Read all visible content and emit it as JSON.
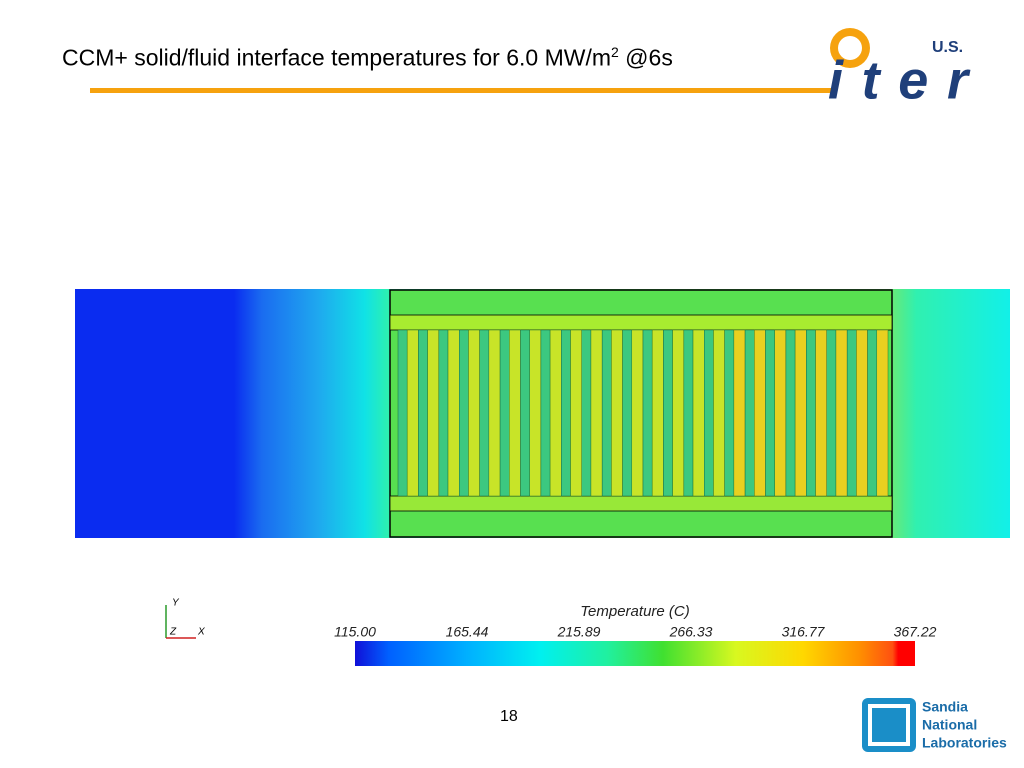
{
  "header": {
    "title": "CCM+ solid/fluid interface temperatures for 6.0 MW/m",
    "title_superscript": "2",
    "title_suffix": " @6s"
  },
  "iter_logo": {
    "country": "U.S.",
    "name": "iter"
  },
  "colorbar": {
    "title": "Temperature (C)",
    "labels": [
      "115.00",
      "165.44",
      "215.89",
      "266.33",
      "316.77",
      "367.22"
    ]
  },
  "axes_triad": {
    "y": "Y",
    "z": "Z",
    "x": "X"
  },
  "page_number": "18",
  "sandia_logo": {
    "lines": [
      "Sandia",
      "National",
      "Laboratories"
    ]
  }
}
